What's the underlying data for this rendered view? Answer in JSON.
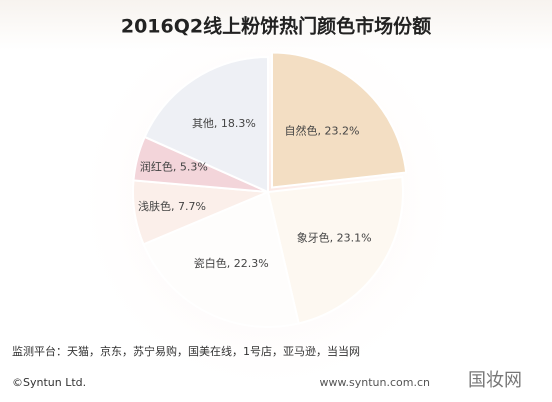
{
  "chart_data": {
    "type": "pie",
    "title": "2016Q2线上粉饼热门颜色市场份额",
    "values": [
      23.2,
      23.1,
      22.3,
      7.7,
      5.3,
      18.3
    ],
    "value_labels": [
      "自然色, 23.2%",
      "象牙色, 23.1%",
      "瓷白色, 22.3%",
      "浅肤色, 7.7%",
      "润红色, 5.3%",
      "其他, 18.3%"
    ],
    "colors": [
      "#f3dec3",
      "#fdf8f1",
      "#fefdfc",
      "#fbefea",
      "#f3d5da",
      "#eef0f5"
    ],
    "source": "监测平台：天猫，京东，苏宁易购，国美在线，1号店，亚马逊，当当网",
    "copyright": "©Syntun Ltd.",
    "website": "www.syntun.com.cn",
    "watermark": "国妆网"
  }
}
